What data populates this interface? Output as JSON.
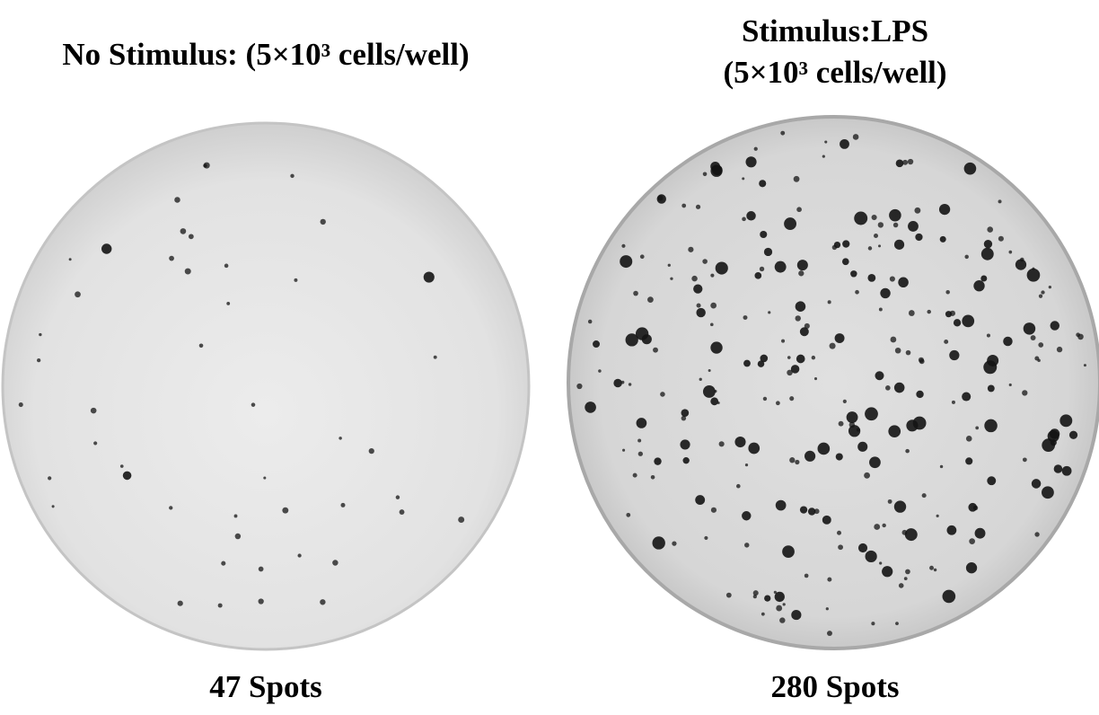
{
  "panels": [
    {
      "title_lines": [
        "No Stimulus: (5×10³ cells/well)"
      ],
      "spot_count_label": "47 Spots",
      "spot_count": 47
    },
    {
      "title_lines": [
        "Stimulus:LPS",
        "(5×10³ cells/well)"
      ],
      "spot_count_label": "280 Spots",
      "spot_count": 280
    }
  ],
  "colors": {
    "well_background": "#e4e4e4",
    "well_rim": "#c8c8c8",
    "spot": "#141414"
  }
}
